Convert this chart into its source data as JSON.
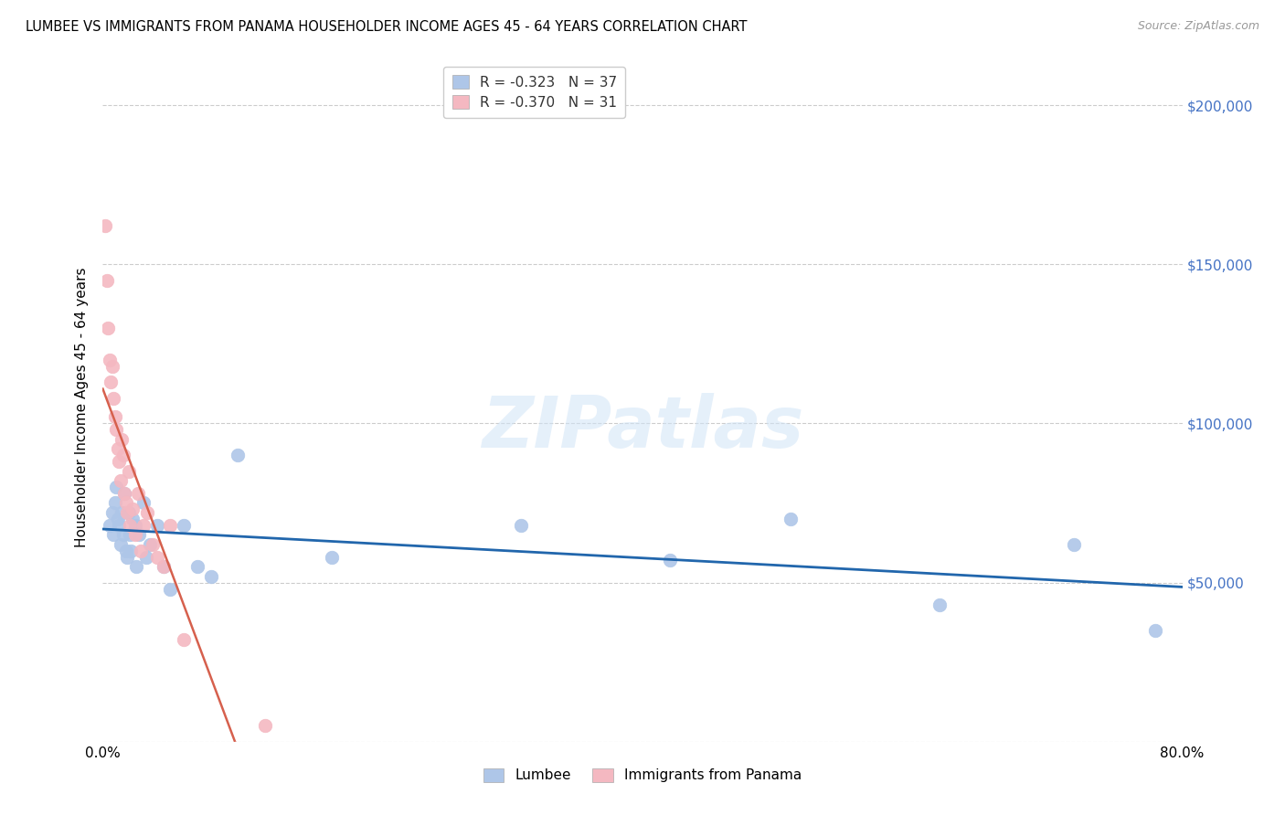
{
  "title": "LUMBEE VS IMMIGRANTS FROM PANAMA HOUSEHOLDER INCOME AGES 45 - 64 YEARS CORRELATION CHART",
  "source": "Source: ZipAtlas.com",
  "ylabel": "Householder Income Ages 45 - 64 years",
  "xlim": [
    0.0,
    0.8
  ],
  "ylim": [
    0,
    210000
  ],
  "yticks": [
    0,
    50000,
    100000,
    150000,
    200000
  ],
  "ytick_labels": [
    "",
    "$50,000",
    "$100,000",
    "$150,000",
    "$200,000"
  ],
  "xticks": [
    0.0,
    0.1,
    0.2,
    0.3,
    0.4,
    0.5,
    0.6,
    0.7,
    0.8
  ],
  "xtick_labels": [
    "0.0%",
    "",
    "",
    "",
    "",
    "",
    "",
    "",
    "80.0%"
  ],
  "legend_blue_label": "Lumbee",
  "legend_pink_label": "Immigrants from Panama",
  "R_blue": -0.323,
  "N_blue": 37,
  "R_pink": -0.37,
  "N_pink": 31,
  "blue_color": "#aec6e8",
  "pink_color": "#f4b8c1",
  "blue_line_color": "#2166ac",
  "pink_line_color": "#d6604d",
  "pink_line_dash_color": "#e8a0a0",
  "watermark_text": "ZIPatlas",
  "blue_x": [
    0.005,
    0.007,
    0.008,
    0.009,
    0.01,
    0.011,
    0.012,
    0.013,
    0.014,
    0.015,
    0.016,
    0.017,
    0.018,
    0.019,
    0.02,
    0.021,
    0.022,
    0.024,
    0.025,
    0.027,
    0.03,
    0.032,
    0.035,
    0.04,
    0.045,
    0.05,
    0.06,
    0.07,
    0.08,
    0.1,
    0.17,
    0.31,
    0.42,
    0.51,
    0.62,
    0.72,
    0.78
  ],
  "blue_y": [
    68000,
    72000,
    65000,
    75000,
    80000,
    70000,
    68000,
    62000,
    72000,
    65000,
    78000,
    60000,
    58000,
    72000,
    65000,
    60000,
    70000,
    68000,
    55000,
    65000,
    75000,
    58000,
    62000,
    68000,
    55000,
    48000,
    68000,
    55000,
    52000,
    90000,
    58000,
    68000,
    57000,
    70000,
    43000,
    62000,
    35000
  ],
  "pink_x": [
    0.002,
    0.003,
    0.004,
    0.005,
    0.006,
    0.007,
    0.008,
    0.009,
    0.01,
    0.011,
    0.012,
    0.013,
    0.014,
    0.015,
    0.016,
    0.017,
    0.018,
    0.019,
    0.02,
    0.022,
    0.024,
    0.026,
    0.028,
    0.03,
    0.033,
    0.037,
    0.04,
    0.045,
    0.05,
    0.06,
    0.12
  ],
  "pink_y": [
    162000,
    145000,
    130000,
    120000,
    113000,
    118000,
    108000,
    102000,
    98000,
    92000,
    88000,
    82000,
    95000,
    90000,
    78000,
    75000,
    72000,
    85000,
    68000,
    73000,
    65000,
    78000,
    60000,
    68000,
    72000,
    62000,
    58000,
    55000,
    68000,
    32000,
    5000
  ]
}
